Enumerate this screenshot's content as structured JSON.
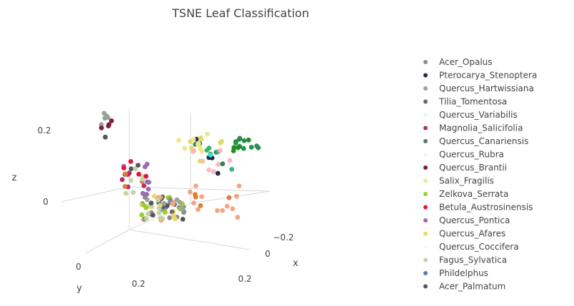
{
  "chart_data": {
    "type": "scatter",
    "title": "TSNE Leaf Classification",
    "dimensions": 3,
    "axes": {
      "x": {
        "label": "x",
        "ticks": [
          "−0.2",
          "0",
          "0.2"
        ]
      },
      "y": {
        "label": "y",
        "ticks": [
          "0",
          "0.2"
        ]
      },
      "z": {
        "label": "z",
        "ticks": [
          "0",
          "0.2"
        ]
      }
    },
    "legend_position": "right",
    "series": [
      {
        "name": "Acer_Opalus",
        "color": "#8c8c8c"
      },
      {
        "name": "Pterocarya_Stenoptera",
        "color": "#1f2a44"
      },
      {
        "name": "Quercus_Hartwissiana",
        "color": "#9aa39a"
      },
      {
        "name": "Tilia_Tomentosa",
        "color": "#6b6b6b"
      },
      {
        "name": "Quercus_Variabilis",
        "color": "#f2f2f2"
      },
      {
        "name": "Magnolia_Salicifolia",
        "color": "#b03060"
      },
      {
        "name": "Quercus_Canariensis",
        "color": "#5a7a5a"
      },
      {
        "name": "Quercus_Rubra",
        "color": "#f7f7f7"
      },
      {
        "name": "Quercus_Brantii",
        "color": "#7a1f3d"
      },
      {
        "name": "Salix_Fragilis",
        "color": "#f0e68c"
      },
      {
        "name": "Zelkova_Serrata",
        "color": "#9acd32"
      },
      {
        "name": "Betula_Austrosinensis",
        "color": "#e3163a"
      },
      {
        "name": "Quercus_Pontica",
        "color": "#9b6bb5"
      },
      {
        "name": "Quercus_Afares",
        "color": "#e6d96b"
      },
      {
        "name": "Quercus_Coccifera",
        "color": "#f8f8f8"
      },
      {
        "name": "Fagus_Sylvatica",
        "color": "#c4d4a0"
      },
      {
        "name": "Phildelphus",
        "color": "#5b7fa6"
      },
      {
        "name": "Acer_Palmatum",
        "color": "#555566"
      }
    ]
  }
}
